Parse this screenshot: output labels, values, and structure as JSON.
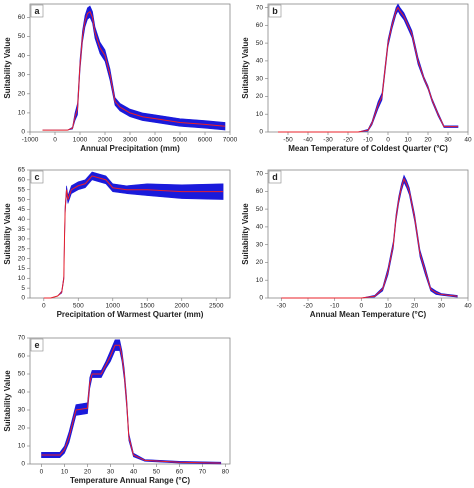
{
  "chart_data": [
    {
      "type": "line",
      "label": "a",
      "xlabel": "Annual Precipitation (mm)",
      "ylabel": "Suitability Value",
      "xlim": [
        -1000,
        7000
      ],
      "xticks": [
        -1000,
        0,
        1000,
        2000,
        3000,
        4000,
        5000,
        6000,
        7000
      ],
      "ylim": [
        0,
        67
      ],
      "yticks": [
        0,
        10,
        20,
        30,
        40,
        50,
        60
      ],
      "color": "#e8202a",
      "band_color": "#1a1adb",
      "x": [
        -500,
        0,
        500,
        700,
        800,
        900,
        1000,
        1100,
        1200,
        1300,
        1400,
        1500,
        1600,
        1700,
        1800,
        2000,
        2200,
        2400,
        2600,
        3000,
        3500,
        4000,
        5000,
        6000,
        6800
      ],
      "values": [
        1,
        1,
        1,
        2,
        8,
        12,
        35,
        50,
        58,
        62,
        63,
        60,
        52,
        48,
        44,
        40,
        30,
        16,
        13,
        10,
        8,
        7,
        5,
        4,
        3
      ],
      "lower": [
        1,
        1,
        1,
        1.5,
        6,
        9,
        32,
        47,
        55,
        59,
        60,
        57,
        49,
        45,
        41,
        37,
        27,
        14,
        11,
        8,
        6,
        5,
        3,
        2,
        1
      ],
      "upper": [
        1,
        1,
        1,
        2.5,
        10,
        15,
        38,
        53,
        61,
        65,
        66,
        63,
        55,
        51,
        47,
        43,
        33,
        18,
        15,
        12,
        10,
        9,
        7,
        6,
        5
      ]
    },
    {
      "type": "line",
      "label": "b",
      "xlabel": "Mean Temperature of Coldest Quarter (°C)",
      "ylabel": "Suitability Value",
      "xlim": [
        -60,
        40
      ],
      "xticks": [
        -50,
        -40,
        -30,
        -20,
        -10,
        0,
        10,
        20,
        30,
        40
      ],
      "ylim": [
        0,
        72
      ],
      "yticks": [
        0,
        10,
        20,
        30,
        40,
        50,
        60,
        70
      ],
      "color": "#e8202a",
      "band_color": "#1a1adb",
      "x": [
        -55,
        -40,
        -20,
        -15,
        -10,
        -8,
        -5,
        -3,
        -2,
        0,
        2,
        4,
        5,
        6,
        8,
        10,
        12,
        15,
        18,
        20,
        22,
        25,
        28,
        30,
        35
      ],
      "values": [
        0,
        0,
        0,
        0,
        1,
        5,
        15,
        20,
        30,
        50,
        60,
        68,
        70,
        68,
        65,
        60,
        55,
        40,
        30,
        25,
        18,
        10,
        3,
        3,
        3
      ],
      "lower": [
        0,
        0,
        0,
        0,
        0.5,
        4,
        13,
        18,
        28,
        48,
        58,
        66,
        68,
        66,
        63,
        58,
        53,
        38,
        29,
        24,
        17,
        9,
        2.5,
        2.5,
        2.5
      ],
      "upper": [
        0,
        0,
        0,
        0,
        1.5,
        6,
        17,
        22,
        32,
        52,
        62,
        70,
        72,
        70,
        67,
        62,
        57,
        42,
        31,
        26,
        19,
        11,
        3.5,
        3.5,
        3.5
      ]
    },
    {
      "type": "line",
      "label": "c",
      "xlabel": "Precipitation of Warmest Quarter (mm)",
      "ylabel": "Suitability Value",
      "xlim": [
        -200,
        2700
      ],
      "xticks": [
        0,
        500,
        1000,
        1500,
        2000,
        2500
      ],
      "ylim": [
        0,
        65
      ],
      "yticks": [
        0,
        5,
        10,
        15,
        20,
        25,
        30,
        35,
        40,
        45,
        50,
        55,
        60,
        65
      ],
      "color": "#e8202a",
      "band_color": "#1a1adb",
      "x": [
        0,
        100,
        200,
        260,
        290,
        300,
        310,
        330,
        350,
        400,
        500,
        600,
        700,
        800,
        900,
        1000,
        1200,
        1500,
        2000,
        2600
      ],
      "values": [
        0,
        0,
        1,
        3,
        10,
        30,
        45,
        55,
        50,
        55,
        57,
        58,
        62,
        61,
        60,
        56,
        55,
        55,
        54,
        54
      ],
      "lower": [
        0,
        0,
        1,
        2.5,
        9,
        28,
        43,
        53,
        48,
        53,
        55,
        56,
        60,
        59,
        58,
        54,
        53,
        52,
        50.5,
        50
      ],
      "upper": [
        0,
        0,
        1,
        3.5,
        11,
        32,
        47,
        57,
        52,
        57,
        59,
        60,
        64,
        63,
        62,
        58,
        57,
        58,
        57.5,
        58
      ]
    },
    {
      "type": "line",
      "label": "d",
      "xlabel": "Annual Mean Temperature (°C)",
      "ylabel": "Suitability Value",
      "xlim": [
        -35,
        40
      ],
      "xticks": [
        -30,
        -20,
        -10,
        0,
        10,
        20,
        30,
        40
      ],
      "ylim": [
        0,
        72
      ],
      "yticks": [
        0,
        10,
        20,
        30,
        40,
        50,
        60,
        70
      ],
      "color": "#e8202a",
      "band_color": "#1a1adb",
      "x": [
        -30,
        -10,
        0,
        5,
        8,
        10,
        12,
        13,
        14,
        15,
        16,
        17,
        18,
        20,
        22,
        24,
        26,
        28,
        30,
        36
      ],
      "values": [
        0,
        0,
        0,
        1,
        5,
        15,
        30,
        45,
        55,
        62,
        67,
        64,
        60,
        45,
        25,
        15,
        5,
        3,
        2,
        1
      ],
      "lower": [
        0,
        0,
        0,
        0.5,
        4,
        13,
        28,
        43,
        53,
        60,
        65,
        62,
        58,
        43,
        23,
        13,
        4,
        2,
        1.5,
        0.5
      ],
      "upper": [
        0,
        0,
        0,
        1.5,
        6,
        17,
        32,
        47,
        57,
        64,
        69,
        66,
        62,
        47,
        27,
        17,
        6,
        4,
        2.5,
        1.5
      ]
    },
    {
      "type": "line",
      "label": "e",
      "xlabel": "Temperature Annual Range (°C)",
      "ylabel": "Suitability Value",
      "xlim": [
        -5,
        82
      ],
      "xticks": [
        0,
        10,
        20,
        30,
        40,
        50,
        60,
        70,
        80
      ],
      "ylim": [
        0,
        70
      ],
      "yticks": [
        0,
        10,
        20,
        30,
        40,
        50,
        60,
        70
      ],
      "color": "#e8202a",
      "band_color": "#1a1adb",
      "x": [
        0,
        5,
        8,
        10,
        12,
        14,
        15,
        20,
        21,
        22,
        26,
        28,
        30,
        32,
        34,
        35,
        36,
        37,
        38,
        40,
        45,
        60,
        78
      ],
      "values": [
        5,
        5,
        5,
        8,
        15,
        25,
        30,
        31,
        45,
        50,
        50,
        55,
        60,
        66,
        66,
        60,
        50,
        35,
        15,
        5,
        2,
        1,
        0.5
      ],
      "lower": [
        3.5,
        3.5,
        3.5,
        6,
        12,
        22,
        27,
        28,
        42,
        48,
        48,
        53,
        57,
        63,
        63,
        57,
        47,
        32,
        13,
        4,
        1.5,
        0.5,
        0
      ],
      "upper": [
        6.5,
        6.5,
        6.5,
        10,
        18,
        28,
        33,
        34,
        48,
        52,
        52,
        57,
        63,
        69,
        69,
        63,
        53,
        38,
        17,
        6,
        2.5,
        1.5,
        1
      ]
    }
  ]
}
